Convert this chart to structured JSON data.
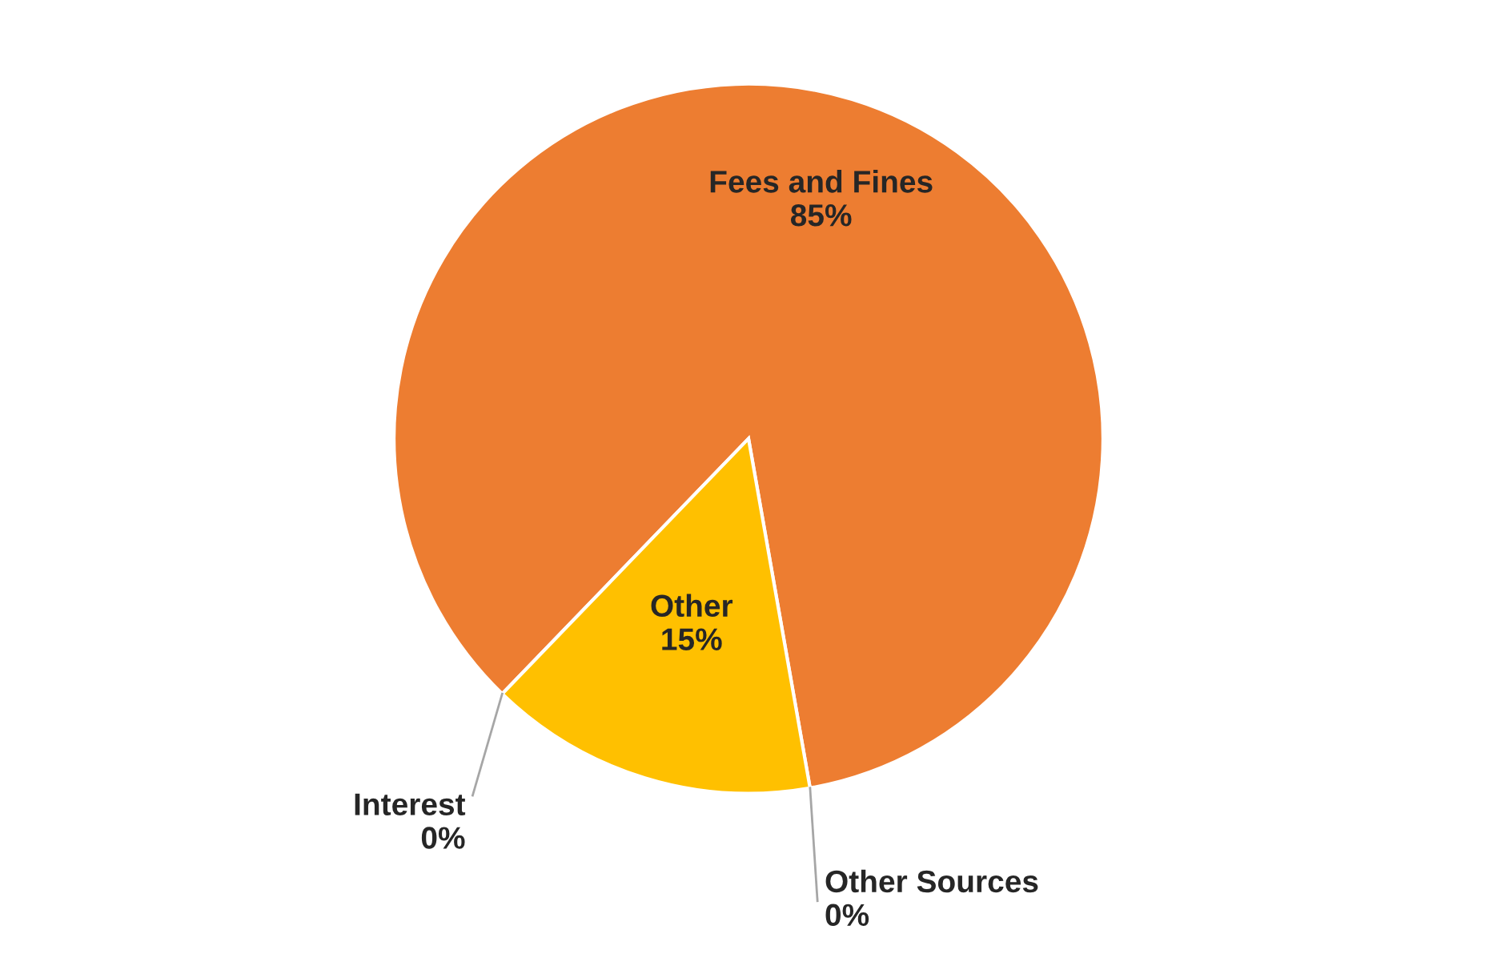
{
  "chart_data": {
    "type": "pie",
    "categories": [
      "Fees and Fines",
      "Other Sources",
      "Other",
      "Interest"
    ],
    "values": [
      85,
      0,
      15,
      0
    ],
    "value_labels": [
      "85%",
      "0%",
      "15%",
      "0%"
    ],
    "colors": [
      "#ed7d31",
      null,
      "#ffc000",
      null
    ],
    "legend": false
  }
}
